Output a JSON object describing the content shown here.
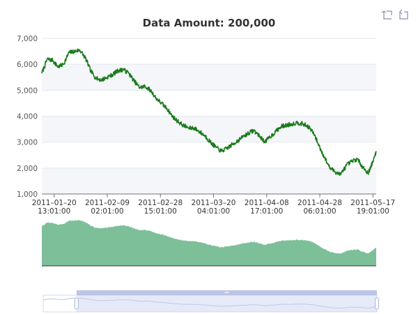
{
  "chart_data": {
    "type": "line",
    "title": "Data Amount: 200,000",
    "xlabel": "",
    "ylabel": "",
    "ylim": [
      1000,
      7000
    ],
    "y_ticks": [
      "1,000",
      "2,000",
      "3,000",
      "4,000",
      "5,000",
      "6,000",
      "7,000"
    ],
    "x_range": [
      "2011-01-16",
      "2011-05-19"
    ],
    "x_tick_labels": [
      {
        "date": "2011-01-20",
        "time": "13:01:00"
      },
      {
        "date": "2011-02-09",
        "time": "02:01:00"
      },
      {
        "date": "2011-02-28",
        "time": "15:01:00"
      },
      {
        "date": "2011-03-20",
        "time": "04:01:00"
      },
      {
        "date": "2011-04-08",
        "time": "17:01:00"
      },
      {
        "date": "2011-04-28",
        "time": "06:01:00"
      },
      {
        "date": "2011-05-17",
        "time": "19:01:00"
      }
    ],
    "grid": "alternating horizontal bands",
    "series": [
      {
        "color": "#1a7a1a",
        "x": [
          "2011-01-16",
          "2011-01-18",
          "2011-01-20",
          "2011-01-22",
          "2011-01-24",
          "2011-01-26",
          "2011-01-28",
          "2011-01-30",
          "2011-02-01",
          "2011-02-03",
          "2011-02-05",
          "2011-02-07",
          "2011-02-09",
          "2011-02-11",
          "2011-02-13",
          "2011-02-15",
          "2011-02-17",
          "2011-02-19",
          "2011-02-21",
          "2011-02-23",
          "2011-02-25",
          "2011-02-27",
          "2011-03-01",
          "2011-03-03",
          "2011-03-05",
          "2011-03-07",
          "2011-03-09",
          "2011-03-11",
          "2011-03-13",
          "2011-03-15",
          "2011-03-17",
          "2011-03-19",
          "2011-03-21",
          "2011-03-23",
          "2011-03-25",
          "2011-03-27",
          "2011-03-29",
          "2011-03-31",
          "2011-04-02",
          "2011-04-04",
          "2011-04-06",
          "2011-04-08",
          "2011-04-10",
          "2011-04-12",
          "2011-04-14",
          "2011-04-16",
          "2011-04-18",
          "2011-04-20",
          "2011-04-22",
          "2011-04-24",
          "2011-04-26",
          "2011-04-28",
          "2011-04-30",
          "2011-05-02",
          "2011-05-04",
          "2011-05-06",
          "2011-05-08",
          "2011-05-10",
          "2011-05-12",
          "2011-05-14",
          "2011-05-16",
          "2011-05-18",
          "2011-05-19"
        ],
        "values": [
          5650,
          6200,
          6150,
          5900,
          6000,
          6450,
          6500,
          6550,
          6250,
          5750,
          5450,
          5400,
          5500,
          5600,
          5750,
          5800,
          5650,
          5350,
          5100,
          5150,
          5000,
          4700,
          4500,
          4300,
          4000,
          3800,
          3650,
          3550,
          3550,
          3400,
          3250,
          3000,
          2800,
          2650,
          2750,
          2900,
          3050,
          3200,
          3350,
          3450,
          3250,
          3000,
          3200,
          3400,
          3600,
          3650,
          3700,
          3750,
          3700,
          3600,
          3350,
          2850,
          2400,
          2000,
          1850,
          1750,
          2100,
          2250,
          2350,
          2050,
          1800,
          2300,
          2650
        ]
      }
    ],
    "secondary_panel": {
      "type": "area",
      "color": "#7cbf99",
      "note": "same series"
    }
  },
  "toolbox": {
    "zoom_icon": "zoom-rect-icon",
    "restore_icon": "zoom-back-icon"
  },
  "datazoom": {
    "start": 0.1,
    "end": 1.0,
    "fill": "#c8d1ef",
    "handle_color": "#9aa7d9"
  }
}
